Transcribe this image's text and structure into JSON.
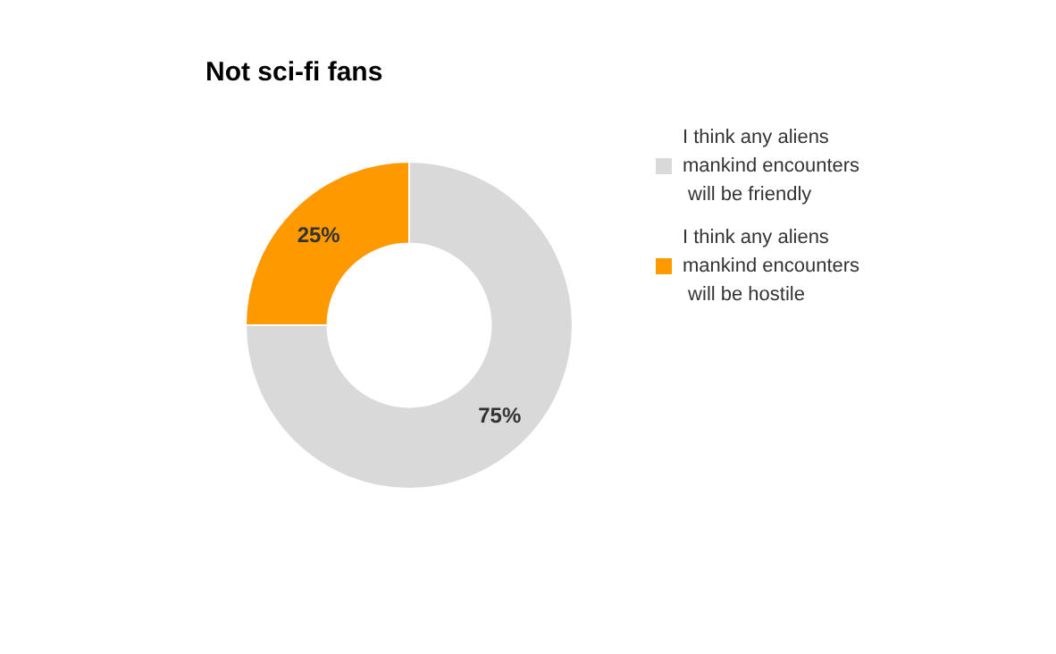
{
  "chart_data": {
    "type": "donut",
    "title": "Not sci-fi fans",
    "categories": [
      "I think any aliens mankind encounters will be friendly",
      "I think any aliens mankind encounters will be hostile"
    ],
    "values": [
      75,
      25
    ],
    "colors": [
      "#d9d9d9",
      "#ff9900"
    ],
    "value_labels": [
      "75%",
      "25%"
    ],
    "legend": "top right"
  }
}
